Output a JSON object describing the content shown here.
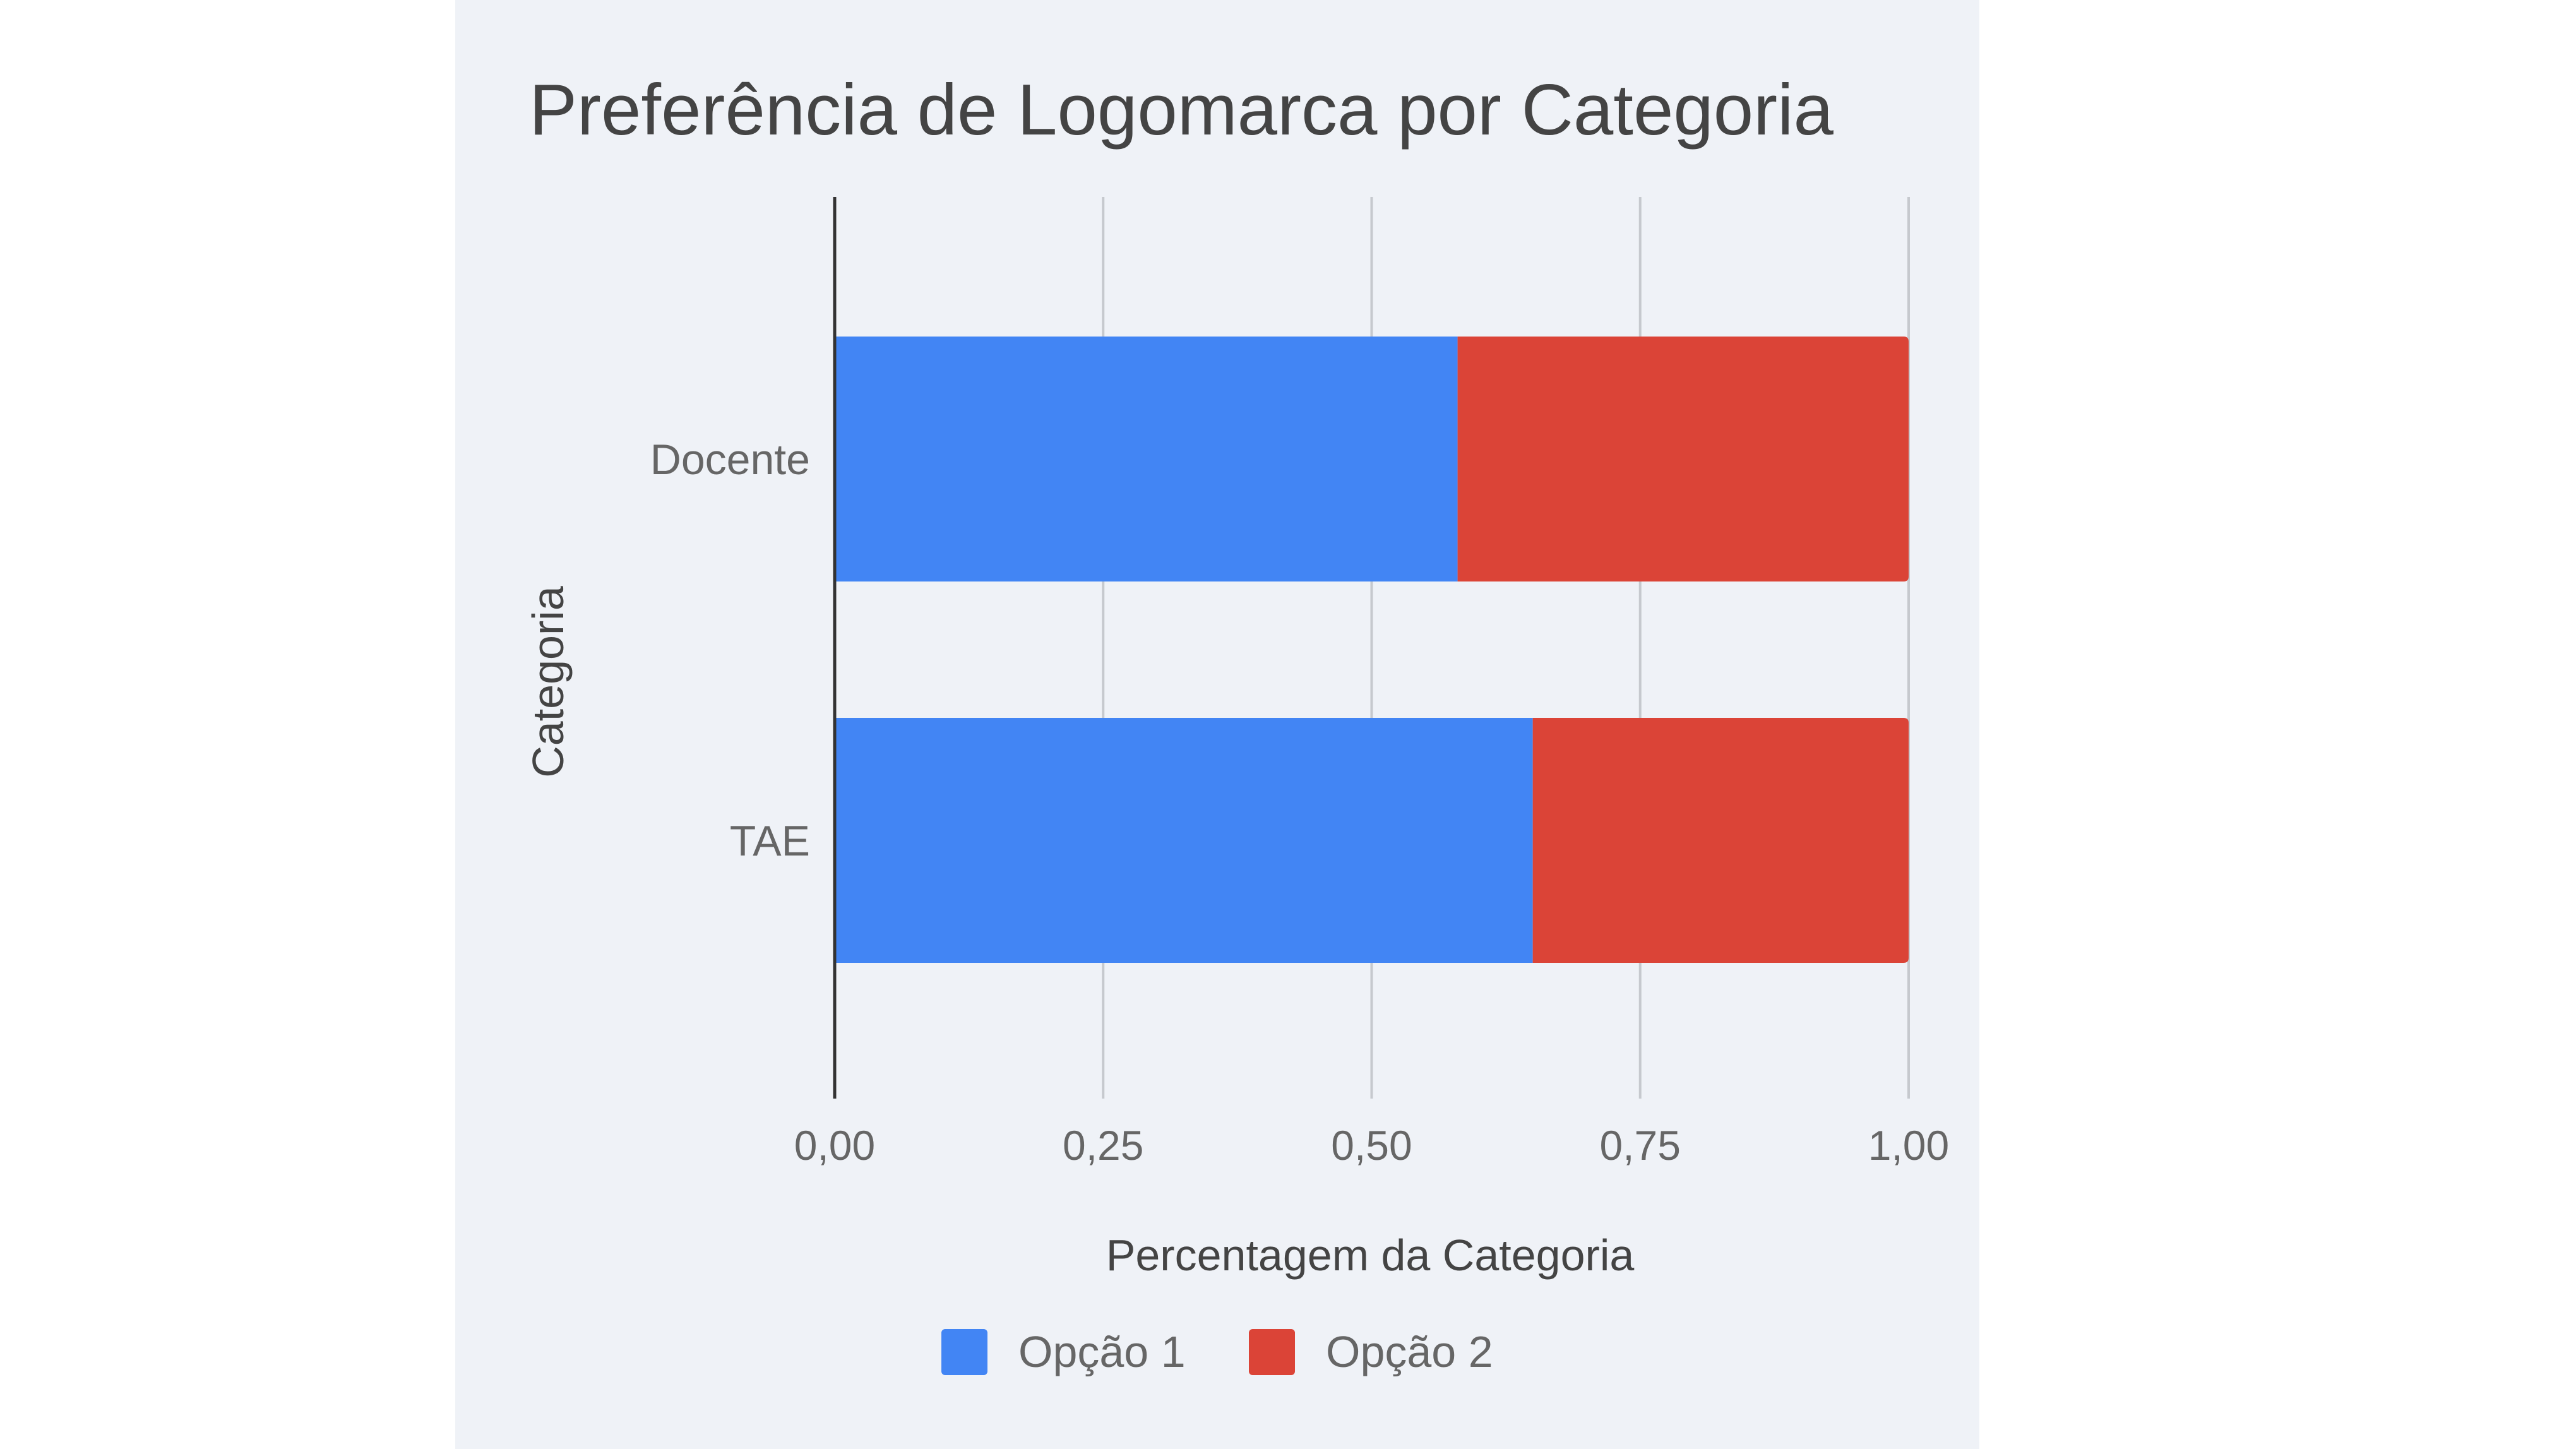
{
  "chart_data": {
    "type": "bar",
    "orientation": "horizontal",
    "stacked": true,
    "title": "Preferência de Logomarca por Categoria",
    "xlabel": "Percentagem da Categoria",
    "ylabel": "Categoria",
    "categories": [
      "Docente",
      "TAE"
    ],
    "series": [
      {
        "name": "Opção 1",
        "color": "#4285f4",
        "values": [
          0.58,
          0.65
        ]
      },
      {
        "name": "Opção 2",
        "color": "#db4437",
        "values": [
          0.42,
          0.35
        ]
      }
    ],
    "xlim": [
      0,
      1
    ],
    "xticks": [
      0,
      0.25,
      0.5,
      0.75,
      1
    ],
    "xtick_labels": [
      "0,00",
      "0,25",
      "0,50",
      "0,75",
      "1,00"
    ],
    "grid": true,
    "legend_position": "bottom",
    "background": "#eff2f7"
  }
}
